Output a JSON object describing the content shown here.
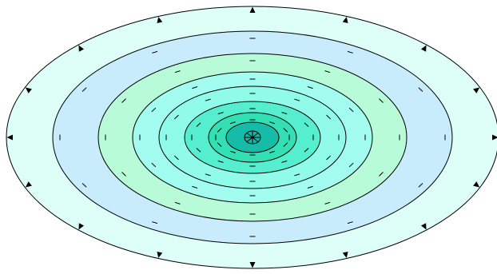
{
  "diagram": {
    "kind": "concentric-ellipse-contour-map",
    "rings": [
      {
        "id": "ring-1",
        "fill": "#ddfff8",
        "tick": "triangle",
        "tick_count": 16
      },
      {
        "id": "ring-2",
        "fill": "#c8ecfb",
        "tick": "line",
        "tick_count": 12
      },
      {
        "id": "ring-3",
        "fill": "#b7fbd8",
        "tick": "line",
        "tick_count": 12
      },
      {
        "id": "ring-4",
        "fill": "#a2fdf0",
        "tick": "line",
        "tick_count": 12
      },
      {
        "id": "ring-5",
        "fill": "#8ffbe8",
        "tick": "line",
        "tick_count": 12
      },
      {
        "id": "ring-6",
        "fill": "#55eecf",
        "tick": "line",
        "tick_count": 12
      },
      {
        "id": "ring-7",
        "fill": "#33e0b4",
        "tick": "line",
        "tick_count": 12
      },
      {
        "id": "ring-8",
        "fill": "#16bca8",
        "tick": "none",
        "tick_count": 0
      }
    ],
    "center_marker": {
      "icon": "asterisk-circle-icon",
      "fill": "#12b8a6",
      "spokes": 8
    },
    "stroke_color": "#000000"
  }
}
